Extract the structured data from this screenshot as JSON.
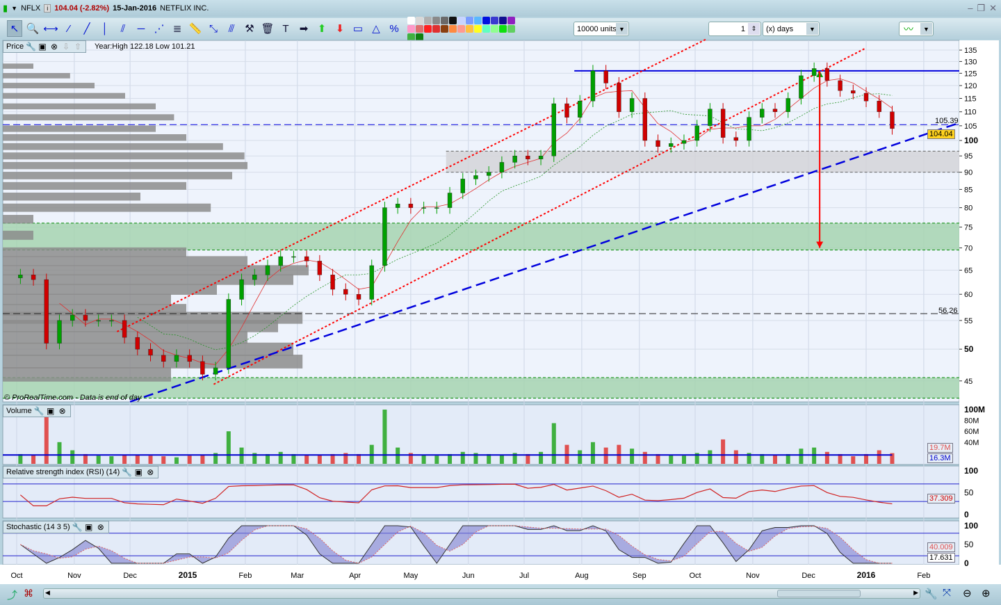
{
  "window": {
    "symbol": "NFLX",
    "last_change": "104.04 (-2.82%)",
    "date": "15-Jan-2016",
    "company": "NETFLIX INC.",
    "controls": [
      "minimize-icon",
      "restore-icon",
      "close-icon"
    ]
  },
  "toolbar": {
    "tools": [
      {
        "name": "pointer-icon",
        "glyph": "↖"
      },
      {
        "name": "zoom-icon",
        "glyph": "🔍"
      },
      {
        "name": "horizontal-segment-icon",
        "glyph": "⟷"
      },
      {
        "name": "segment-icon",
        "glyph": "⁄"
      },
      {
        "name": "line-icon",
        "glyph": "╱"
      },
      {
        "name": "vertical-line-icon",
        "glyph": "│"
      },
      {
        "name": "channel-icon",
        "glyph": "⫽"
      },
      {
        "name": "horizontal-line-icon",
        "glyph": "─"
      },
      {
        "name": "fan-icon",
        "glyph": "⋰"
      },
      {
        "name": "fibonacci-icon",
        "glyph": "≣"
      },
      {
        "name": "ruler-icon",
        "glyph": "📏"
      },
      {
        "name": "point-icon",
        "glyph": "⤡"
      },
      {
        "name": "parallel-icon",
        "glyph": "⫻"
      },
      {
        "name": "tools-icon",
        "glyph": "⚒"
      },
      {
        "name": "trash-icon",
        "glyph": "🗑"
      },
      {
        "name": "text-icon",
        "glyph": "T"
      },
      {
        "name": "arrow-right-icon",
        "glyph": "➡"
      },
      {
        "name": "arrow-up-icon",
        "glyph": "⬆"
      },
      {
        "name": "arrow-down-icon",
        "glyph": "⬇"
      },
      {
        "name": "rectangle-icon",
        "glyph": "▭"
      },
      {
        "name": "triangle-icon",
        "glyph": "△"
      },
      {
        "name": "percent-icon",
        "glyph": "%"
      }
    ],
    "swatches": [
      "#ffffff",
      "#d8d8d8",
      "#b0b0b0",
      "#8a8a8a",
      "#6a6a6a",
      "#111111",
      "#c8d4ff",
      "#7a9cff",
      "#5ab8ff",
      "#0010e0",
      "#3a3ad0",
      "#101090",
      "#9020c0",
      "#ff99c8",
      "#e07070",
      "#ff2020",
      "#e03030",
      "#8a4010",
      "#ff8a40",
      "#ff9a90",
      "#ffc040",
      "#ffff20",
      "#60ffc0",
      "#90ff90",
      "#10e010",
      "#60d060",
      "#40b040",
      "#108010"
    ],
    "units": "10000 units",
    "period_value": "1",
    "period_unit": "(x) days"
  },
  "price_panel": {
    "label": "Price",
    "info": "Year:High 122.18 Low 101.21",
    "copyright": "© ProRealTime.com - Data is end of day",
    "last_tag": "104.04",
    "line1_label": "105.39",
    "line2_label": "56.26"
  },
  "volume_panel": {
    "label": "Volume",
    "tag_volume": "19.7M",
    "tag_avg": "16.3M",
    "ticks": [
      "100M",
      "80M",
      "60M",
      "40M"
    ]
  },
  "rsi_panel": {
    "label": "Relative strength index (RSI) (14)",
    "tag": "37.309",
    "ticks": [
      "100",
      "50",
      "0"
    ]
  },
  "stoch_panel": {
    "label": "Stochastic (14 3 5)",
    "tag_k": "40.009",
    "tag_d": "17.631",
    "ticks": [
      "100",
      "50",
      "0"
    ]
  },
  "colors": {
    "up": "#00a000",
    "down": "#d00000",
    "trend": "#0000dd",
    "channel": "#ff0000",
    "zone_green": "#a6d4b0",
    "zone_gray": "#d4d4d8"
  },
  "chart_data": {
    "type": "candlestick",
    "scale": "log",
    "y_ticks": [
      45,
      50,
      55,
      60,
      65,
      70,
      75,
      80,
      85,
      90,
      95,
      100,
      105,
      110,
      115,
      120,
      125,
      130,
      135
    ],
    "x_ticks": [
      {
        "date": "2014-10-01",
        "label": "Oct"
      },
      {
        "date": "2014-11-01",
        "label": "Nov"
      },
      {
        "date": "2014-12-01",
        "label": "Dec"
      },
      {
        "date": "2015-01-01",
        "label": "2015"
      },
      {
        "date": "2015-02-01",
        "label": "Feb"
      },
      {
        "date": "2015-03-01",
        "label": "Mar"
      },
      {
        "date": "2015-04-01",
        "label": "Apr"
      },
      {
        "date": "2015-05-01",
        "label": "May"
      },
      {
        "date": "2015-06-01",
        "label": "Jun"
      },
      {
        "date": "2015-07-01",
        "label": "Jul"
      },
      {
        "date": "2015-08-01",
        "label": "Aug"
      },
      {
        "date": "2015-09-01",
        "label": "Sep"
      },
      {
        "date": "2015-10-01",
        "label": "Oct"
      },
      {
        "date": "2015-11-01",
        "label": "Nov"
      },
      {
        "date": "2015-12-01",
        "label": "Dec"
      },
      {
        "date": "2016-01-01",
        "label": "2016"
      },
      {
        "date": "2016-02-01",
        "label": "Feb"
      }
    ],
    "weekly_start": "2014-10-03",
    "weekly_close": [
      64,
      63,
      51,
      55,
      56,
      55,
      55,
      55,
      52,
      50,
      49,
      48,
      49,
      48,
      46,
      47,
      59,
      63,
      64,
      66,
      68,
      68,
      67,
      64,
      61,
      60,
      59,
      66,
      80,
      81,
      80,
      80,
      80,
      84,
      88,
      89,
      90,
      93,
      95,
      94,
      95,
      113,
      108,
      114,
      126,
      121,
      110,
      115,
      100,
      98,
      99,
      100,
      105,
      111,
      101,
      100,
      108,
      111,
      110,
      115,
      124,
      127,
      122,
      118,
      117,
      114,
      110,
      104.04
    ],
    "weekly_volume_m": [
      18,
      16,
      90,
      40,
      25,
      18,
      15,
      14,
      16,
      17,
      15,
      14,
      12,
      15,
      16,
      20,
      60,
      30,
      20,
      18,
      22,
      18,
      16,
      17,
      18,
      20,
      18,
      35,
      100,
      30,
      20,
      16,
      15,
      18,
      22,
      20,
      18,
      17,
      20,
      18,
      22,
      75,
      35,
      25,
      40,
      30,
      35,
      28,
      22,
      18,
      16,
      15,
      20,
      25,
      45,
      25,
      20,
      18,
      16,
      18,
      28,
      30,
      22,
      18,
      14,
      18,
      25,
      19.7
    ],
    "volume_average_m": 16.3,
    "horizontal_lines": [
      {
        "price": 105.39,
        "style": "dashed",
        "color": "#0000dd"
      },
      {
        "price": 56.26,
        "style": "dashed",
        "color": "#222222"
      },
      {
        "price": 126,
        "style": "solid",
        "color": "#0000dd",
        "from": "2015-07-28"
      }
    ],
    "zones": [
      {
        "low": 90,
        "high": 96.5,
        "from": "2015-05-20",
        "color": "gray"
      },
      {
        "low": 69.5,
        "high": 76,
        "color": "green"
      },
      {
        "low": 42.5,
        "high": 45.5,
        "color": "green"
      }
    ],
    "trendlines": [
      {
        "from": [
          "2014-11-24",
          53
        ],
        "to": [
          "2015-10-07",
          140
        ],
        "style": "dotted",
        "color": "#ff0000"
      },
      {
        "from": [
          "2015-01-15",
          44.5
        ],
        "to": [
          "2016-01-01",
          136
        ],
        "style": "dotted",
        "color": "#ff0000"
      },
      {
        "from": [
          "2014-12-01",
          42
        ],
        "to": [
          "2016-02-20",
          106
        ],
        "style": "dashed",
        "color": "#0000dd"
      }
    ],
    "arrows": [
      {
        "date": "2015-12-07",
        "from": 105,
        "to": 126,
        "color": "#00a000"
      },
      {
        "date": "2015-12-07",
        "from": 126,
        "to": 70,
        "color": "#ff0000"
      }
    ],
    "volume_profile": [
      [
        46,
        0.55
      ],
      [
        48,
        0.98
      ],
      [
        50,
        0.95
      ],
      [
        52,
        0.8
      ],
      [
        54,
        0.9
      ],
      [
        55.5,
        0.98
      ],
      [
        57,
        0.6
      ],
      [
        59,
        0.55
      ],
      [
        61,
        0.7
      ],
      [
        63,
        0.95
      ],
      [
        65,
        1.0
      ],
      [
        67,
        0.8
      ],
      [
        69,
        0.6
      ],
      [
        73,
        0.1
      ],
      [
        77,
        0.1
      ],
      [
        80,
        0.68
      ],
      [
        83,
        0.45
      ],
      [
        86,
        0.6
      ],
      [
        89,
        0.75
      ],
      [
        92,
        0.8
      ],
      [
        95,
        0.79
      ],
      [
        98,
        0.72
      ],
      [
        101,
        0.6
      ],
      [
        104,
        0.5
      ],
      [
        108,
        0.56
      ],
      [
        112,
        0.5
      ],
      [
        116,
        0.4
      ],
      [
        120,
        0.3
      ],
      [
        124,
        0.22
      ],
      [
        128,
        0.1
      ]
    ]
  },
  "bottom": {
    "icons": [
      "chart-export-icon",
      "candle-type-icon",
      "scroll-left-icon",
      "scroll-right-icon",
      "settings-icon",
      "zoom-fit-icon",
      "zoom-out-icon",
      "zoom-in-icon"
    ]
  }
}
